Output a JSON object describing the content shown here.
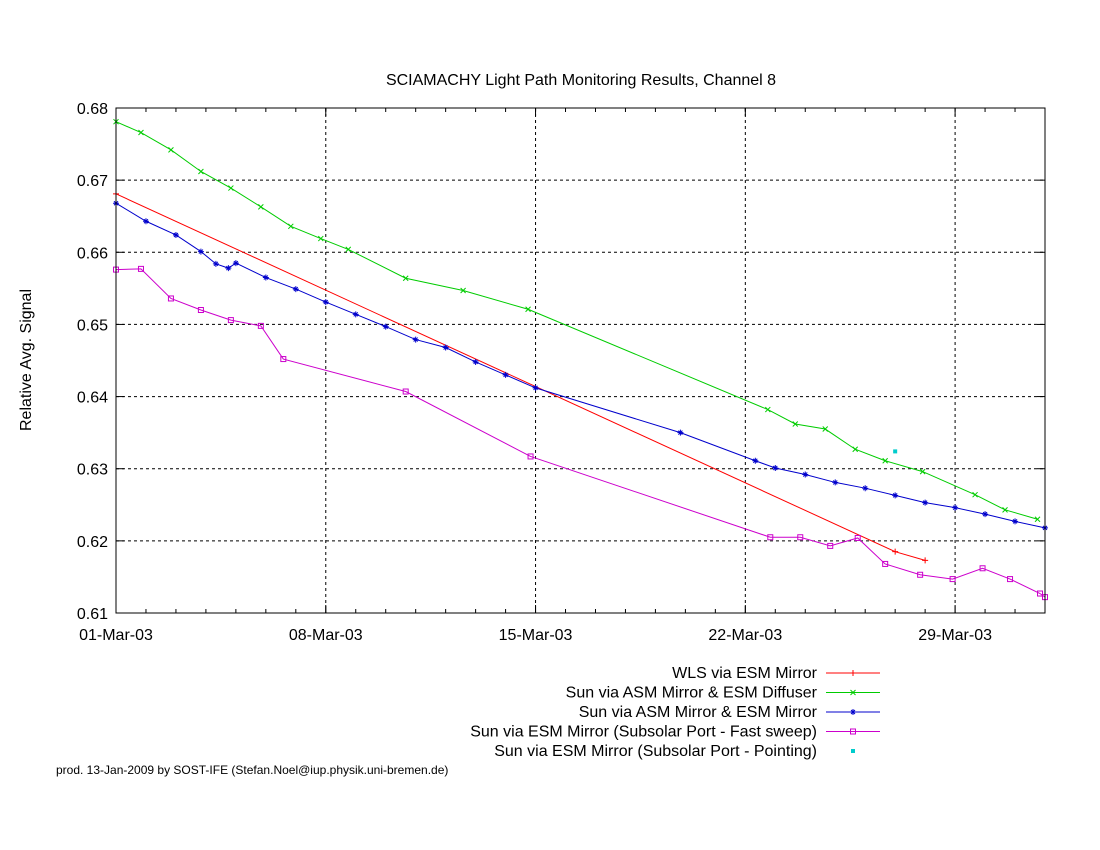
{
  "chart_data": {
    "type": "line",
    "title": "SCIAMACHY Light Path Monitoring Results, Channel 8",
    "xlabel": "",
    "ylabel": "Relative Avg. Signal",
    "x_unit": "date",
    "xlim": [
      "2003-03-01",
      "2003-04-01"
    ],
    "ylim": [
      0.61,
      0.68
    ],
    "x_ticks": [
      "01-Mar-03",
      "08-Mar-03",
      "15-Mar-03",
      "22-Mar-03",
      "29-Mar-03"
    ],
    "x_tick_dates": [
      "2003-03-01",
      "2003-03-08",
      "2003-03-15",
      "2003-03-22",
      "2003-03-29"
    ],
    "y_ticks": [
      0.61,
      0.62,
      0.63,
      0.64,
      0.65,
      0.66,
      0.67,
      0.68
    ],
    "y_tick_labels": [
      "0.61",
      "0.62",
      "0.63",
      "0.64",
      "0.65",
      "0.66",
      "0.67",
      "0.68"
    ],
    "grid": true,
    "legend_position": "bottom-right-below-plot",
    "series": [
      {
        "name": "WLS via ESM Mirror",
        "color": "#ff0000",
        "marker": "plus",
        "connect": "all",
        "points": [
          [
            "2003-03-01",
            0.6681
          ],
          [
            "2003-03-27 00:00",
            0.6185
          ],
          [
            "2003-03-28 00:00",
            0.6173
          ]
        ]
      },
      {
        "name": "Sun via ASM Mirror & ESM Diffuser",
        "color": "#00cc00",
        "marker": "cross",
        "connect": "all",
        "points": [
          [
            "2003-03-01 00:00",
            0.6781
          ],
          [
            "2003-03-01 20:00",
            0.6766
          ],
          [
            "2003-03-02 20:00",
            0.6742
          ],
          [
            "2003-03-03 20:00",
            0.6712
          ],
          [
            "2003-03-04 20:00",
            0.6689
          ],
          [
            "2003-03-05 20:00",
            0.6663
          ],
          [
            "2003-03-06 20:00",
            0.6636
          ],
          [
            "2003-03-07 20:00",
            0.6619
          ],
          [
            "2003-03-08 18:00",
            0.6604
          ],
          [
            "2003-03-10 16:00",
            0.6564
          ],
          [
            "2003-03-12 14:00",
            0.6547
          ],
          [
            "2003-03-14 18:00",
            0.6521
          ],
          [
            "2003-03-22 18:00",
            0.6382
          ],
          [
            "2003-03-23 16:00",
            0.6362
          ],
          [
            "2003-03-24 16:00",
            0.6355
          ],
          [
            "2003-03-25 16:00",
            0.6327
          ],
          [
            "2003-03-26 16:00",
            0.6311
          ],
          [
            "2003-03-27 22:00",
            0.6296
          ],
          [
            "2003-03-29 16:00",
            0.6264
          ],
          [
            "2003-03-30 16:00",
            0.6243
          ],
          [
            "2003-03-31 18:00",
            0.623
          ]
        ]
      },
      {
        "name": "Sun via ASM Mirror & ESM Mirror",
        "color": "#0000cc",
        "marker": "star",
        "connect": "all",
        "points": [
          [
            "2003-03-01 00:00",
            0.6668
          ],
          [
            "2003-03-02 00:00",
            0.6643
          ],
          [
            "2003-03-03 00:00",
            0.6624
          ],
          [
            "2003-03-03 20:00",
            0.6601
          ],
          [
            "2003-03-04 08:00",
            0.6584
          ],
          [
            "2003-03-04 18:00",
            0.6578
          ],
          [
            "2003-03-05 00:00",
            0.6585
          ],
          [
            "2003-03-06 00:00",
            0.6565
          ],
          [
            "2003-03-07 00:00",
            0.6549
          ],
          [
            "2003-03-08 00:00",
            0.6531
          ],
          [
            "2003-03-09 00:00",
            0.6514
          ],
          [
            "2003-03-10 00:00",
            0.6497
          ],
          [
            "2003-03-11 00:00",
            0.6479
          ],
          [
            "2003-03-12 00:00",
            0.6468
          ],
          [
            "2003-03-13 00:00",
            0.6448
          ],
          [
            "2003-03-14 00:00",
            0.643
          ],
          [
            "2003-03-15 00:00",
            0.6412
          ],
          [
            "2003-03-19 20:00",
            0.635
          ],
          [
            "2003-03-22 08:00",
            0.6311
          ],
          [
            "2003-03-23 00:00",
            0.6301
          ],
          [
            "2003-03-24 00:00",
            0.6292
          ],
          [
            "2003-03-25 00:00",
            0.6281
          ],
          [
            "2003-03-26 00:00",
            0.6273
          ],
          [
            "2003-03-27 00:00",
            0.6263
          ],
          [
            "2003-03-28 00:00",
            0.6253
          ],
          [
            "2003-03-29 00:00",
            0.6246
          ],
          [
            "2003-03-30 00:00",
            0.6237
          ],
          [
            "2003-03-31 00:00",
            0.6227
          ],
          [
            "2003-04-01 00:00",
            0.6218
          ]
        ]
      },
      {
        "name": "Sun via ESM Mirror (Subsolar Port - Fast sweep)",
        "color": "#cc00cc",
        "marker": "square",
        "connect": "all",
        "points": [
          [
            "2003-03-01 00:00",
            0.6576
          ],
          [
            "2003-03-01 20:00",
            0.6577
          ],
          [
            "2003-03-02 20:00",
            0.6536
          ],
          [
            "2003-03-03 20:00",
            0.652
          ],
          [
            "2003-03-04 20:00",
            0.6506
          ],
          [
            "2003-03-05 20:00",
            0.6498
          ],
          [
            "2003-03-06 14:00",
            0.6452
          ],
          [
            "2003-03-10 16:00",
            0.6407
          ],
          [
            "2003-03-14 20:00",
            0.6317
          ],
          [
            "2003-03-22 20:00",
            0.6205
          ],
          [
            "2003-03-23 20:00",
            0.6205
          ],
          [
            "2003-03-24 20:00",
            0.6193
          ],
          [
            "2003-03-25 18:00",
            0.6204
          ],
          [
            "2003-03-26 16:00",
            0.6168
          ],
          [
            "2003-03-27 20:00",
            0.6153
          ],
          [
            "2003-03-28 22:00",
            0.6147
          ],
          [
            "2003-03-29 22:00",
            0.6162
          ],
          [
            "2003-03-30 20:00",
            0.6147
          ],
          [
            "2003-03-31 20:00",
            0.6127
          ],
          [
            "2003-04-01 00:00",
            0.6122
          ]
        ]
      },
      {
        "name": "Sun via ESM Mirror (Subsolar Port - Pointing)",
        "color": "#00cccc",
        "marker": "dot",
        "connect": "none",
        "points": [
          [
            "2003-03-27 00:00",
            0.6324
          ]
        ]
      }
    ]
  },
  "footer": "prod. 13-Jan-2009 by SOST-IFE (Stefan.Noel@iup.physik.uni-bremen.de)"
}
